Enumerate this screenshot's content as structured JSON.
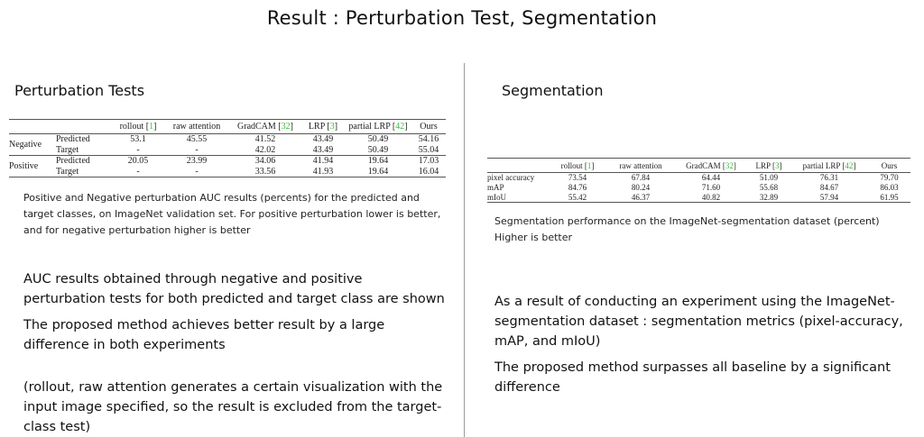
{
  "slide_title": "Result : Perturbation Test, Segmentation",
  "left": {
    "heading": "Perturbation Tests",
    "table": {
      "columns": [
        {
          "name": "rollout",
          "ref": "1"
        },
        {
          "name": "raw attention",
          "ref": ""
        },
        {
          "name": "GradCAM",
          "ref": "32"
        },
        {
          "name": "LRP",
          "ref": "3"
        },
        {
          "name": "partial LRP",
          "ref": "42"
        },
        {
          "name": "Ours",
          "ref": ""
        }
      ],
      "groups": [
        {
          "label": "Negative",
          "rows": [
            {
              "label": "Predicted",
              "values": [
                "53.1",
                "45.55",
                "41.52",
                "43.49",
                "50.49",
                "54.16"
              ]
            },
            {
              "label": "Target",
              "values": [
                "-",
                "-",
                "42.02",
                "43.49",
                "50.49",
                "55.04"
              ]
            }
          ]
        },
        {
          "label": "Positive",
          "rows": [
            {
              "label": "Predicted",
              "values": [
                "20.05",
                "23.99",
                "34.06",
                "41.94",
                "19.64",
                "17.03"
              ]
            },
            {
              "label": "Target",
              "values": [
                "-",
                "-",
                "33.56",
                "41.93",
                "19.64",
                "16.04"
              ]
            }
          ]
        }
      ]
    },
    "caption": "Positive and Negative perturbation AUC results (percents) for the predicted and target classes, on ImageNet validation set. For positive perturbation lower is better, and for negative perturbation higher is better",
    "bullets": [
      "AUC results obtained through negative and positive perturbation tests for both predicted and target class are shown",
      "The proposed method achieves better result by a large difference in both experiments",
      "(rollout, raw attention generates a certain visualization with the input image specified, so the result is excluded from the target-class test)"
    ]
  },
  "right": {
    "heading": "Segmentation",
    "table": {
      "columns": [
        {
          "name": "rollout",
          "ref": "1"
        },
        {
          "name": "raw attention",
          "ref": ""
        },
        {
          "name": "GradCAM",
          "ref": "32"
        },
        {
          "name": "LRP",
          "ref": "3"
        },
        {
          "name": "partial LRP",
          "ref": "42"
        },
        {
          "name": "Ours",
          "ref": ""
        }
      ],
      "rows": [
        {
          "label": "pixel accuracy",
          "values": [
            "73.54",
            "67.84",
            "64.44",
            "51.09",
            "76.31",
            "79.70"
          ]
        },
        {
          "label": "mAP",
          "values": [
            "84.76",
            "80.24",
            "71.60",
            "55.68",
            "84.67",
            "86.03"
          ]
        },
        {
          "label": "mIoU",
          "values": [
            "55.42",
            "46.37",
            "40.82",
            "32.89",
            "57.94",
            "61.95"
          ]
        }
      ]
    },
    "caption_lines": [
      "Segmentation performance on the ImageNet-segmentation dataset (percent)",
      "Higher is better"
    ],
    "bullets": [
      "As a result of conducting an experiment using the ImageNet-segmentation dataset : segmentation metrics (pixel-accuracy, mAP, and mIoU)",
      "The proposed method surpasses all baseline by a significant difference"
    ]
  },
  "colors": {
    "ref": "#3db83d",
    "divider": "#9a9a9a"
  }
}
